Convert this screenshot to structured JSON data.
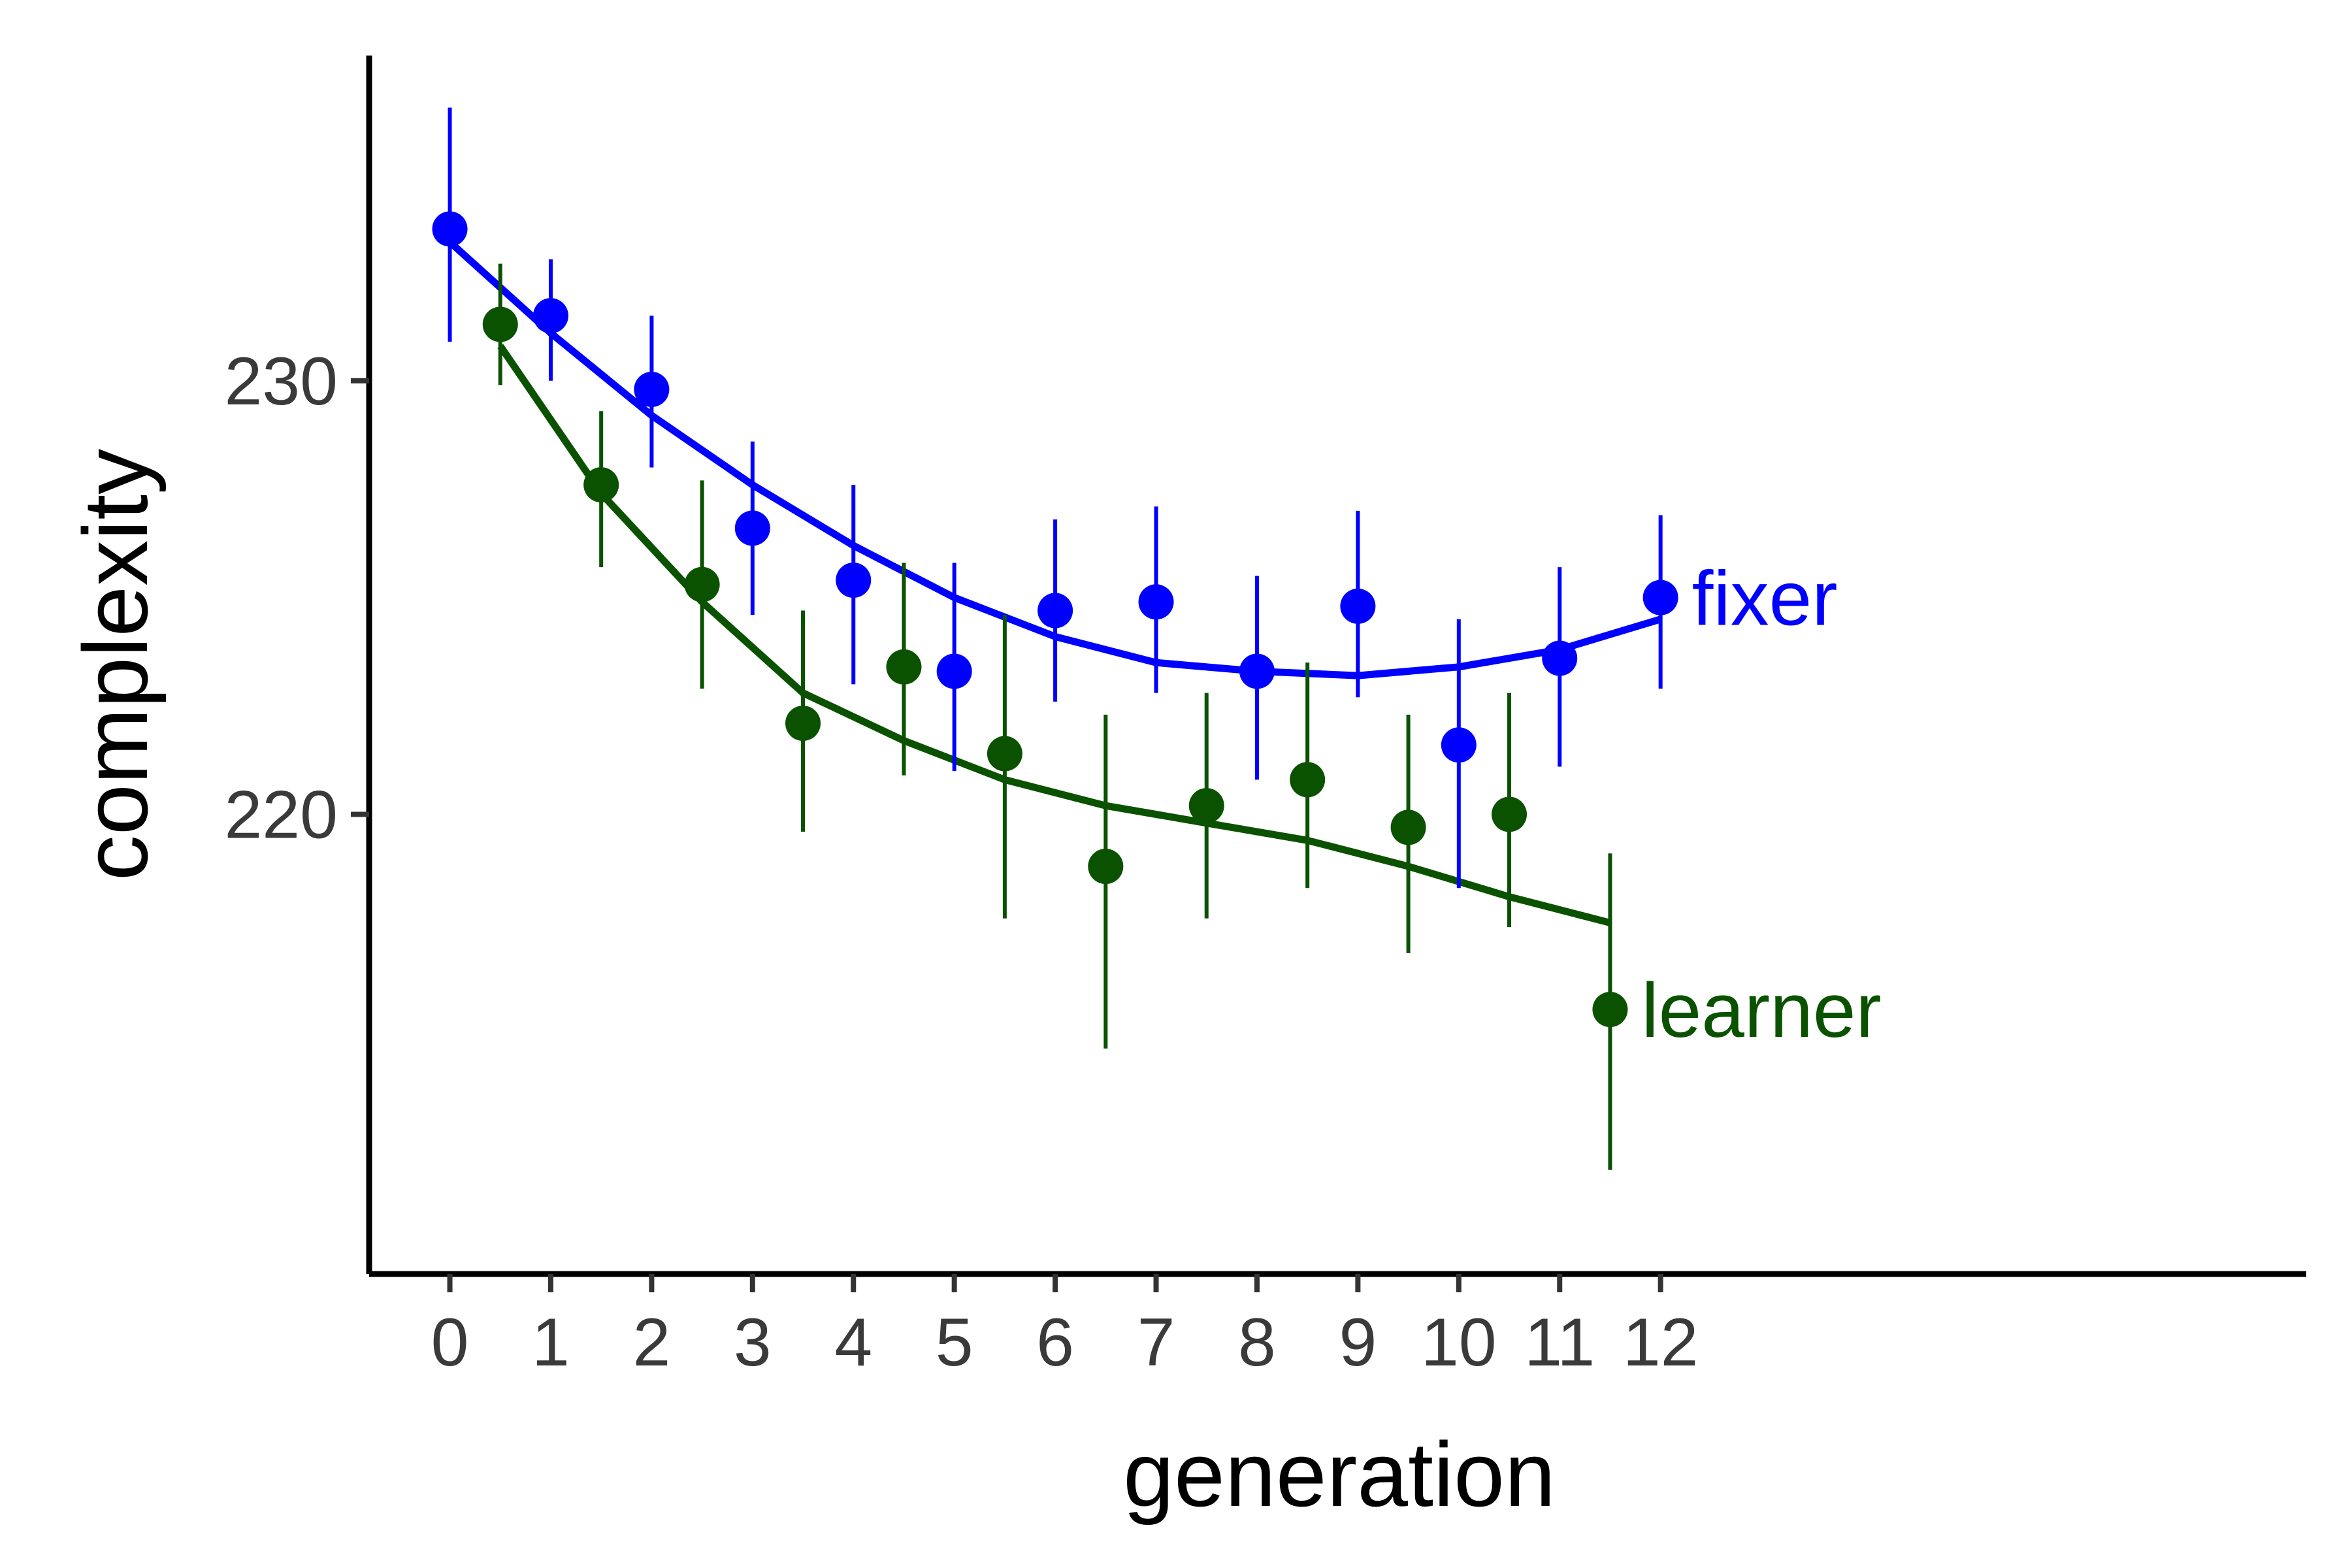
{
  "chart_data": {
    "type": "scatter",
    "title": "",
    "xlabel": "generation",
    "ylabel": "complexity",
    "xlim": [
      -0.8,
      18.4
    ],
    "ylim": [
      209.4,
      237.5
    ],
    "xticks": [
      0,
      1,
      2,
      3,
      4,
      5,
      6,
      7,
      8,
      9,
      10,
      11,
      12
    ],
    "xtick_labels": [
      "0",
      "1",
      "2",
      "3",
      "4",
      "5",
      "6",
      "7",
      "8",
      "9",
      "10",
      "11",
      "12"
    ],
    "yticks": [
      220,
      230
    ],
    "ytick_labels": [
      "220",
      "230"
    ],
    "grid": false,
    "legend": "none",
    "series": [
      {
        "name": "fixer",
        "color": "#0000ff",
        "x": [
          0,
          1,
          2,
          3,
          4,
          5,
          6,
          7,
          8,
          9,
          10,
          11,
          12
        ],
        "y": [
          233.5,
          231.5,
          229.8,
          226.6,
          225.4,
          223.3,
          224.7,
          224.9,
          223.3,
          224.8,
          221.6,
          223.6,
          225.0
        ],
        "err_low": [
          230.9,
          230.0,
          228.0,
          224.6,
          223.0,
          221.0,
          222.6,
          222.8,
          220.8,
          222.7,
          218.3,
          221.1,
          222.9
        ],
        "err_high": [
          236.3,
          232.8,
          231.5,
          228.6,
          227.6,
          225.8,
          226.8,
          227.1,
          225.5,
          227.0,
          224.5,
          225.7,
          226.9
        ],
        "fit_x": [
          0,
          1,
          2,
          3,
          4,
          5,
          6,
          7,
          8,
          9,
          10,
          11,
          12
        ],
        "fit_y": [
          233.2,
          231.1,
          229.2,
          227.6,
          226.2,
          225.0,
          224.1,
          223.5,
          223.3,
          223.2,
          223.4,
          223.8,
          224.5
        ]
      },
      {
        "name": "learner",
        "color": "#0a5200",
        "x": [
          0.5,
          1.5,
          2.5,
          3.5,
          4.5,
          5.5,
          6.5,
          7.5,
          8.5,
          9.5,
          10.5,
          11.5
        ],
        "y": [
          231.3,
          227.6,
          225.3,
          222.1,
          223.4,
          221.4,
          218.8,
          220.2,
          220.8,
          219.7,
          220.0,
          215.5
        ],
        "err_low": [
          229.9,
          225.7,
          222.9,
          219.6,
          220.9,
          217.6,
          214.6,
          217.6,
          218.3,
          216.8,
          217.4,
          211.8
        ],
        "err_high": [
          232.7,
          229.3,
          227.7,
          224.7,
          225.8,
          224.6,
          222.3,
          222.8,
          223.5,
          222.3,
          222.8,
          219.1
        ],
        "fit_x": [
          0.5,
          1.5,
          2.5,
          3.5,
          4.5,
          5.5,
          6.5,
          7.5,
          8.5,
          9.5,
          10.5,
          11.5
        ],
        "fit_y": [
          230.8,
          227.4,
          224.9,
          222.8,
          221.7,
          220.8,
          220.2,
          219.8,
          219.4,
          218.8,
          218.1,
          217.5
        ]
      }
    ]
  }
}
